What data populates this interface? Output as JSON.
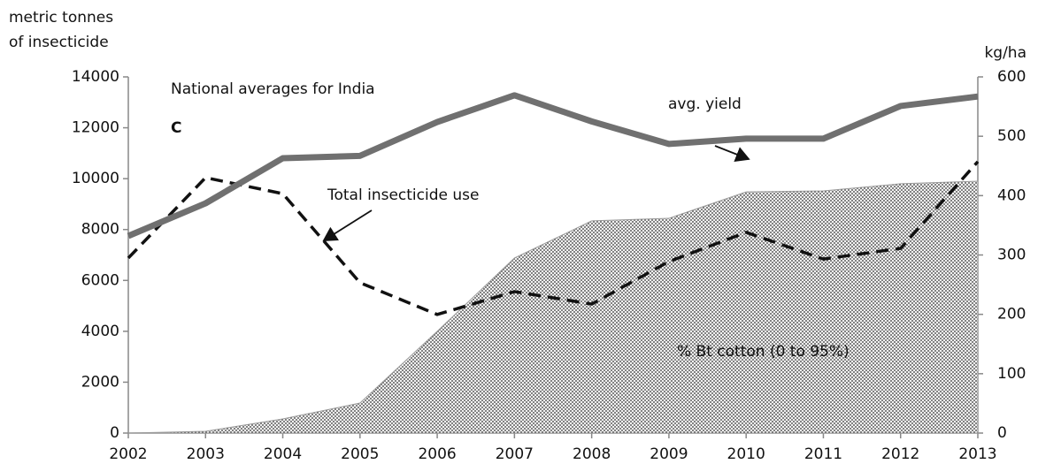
{
  "chart_data": {
    "type": "line",
    "title": "National averages for India",
    "panel_label": "C",
    "ylabel": [
      "metric tonnes",
      "of insecticide"
    ],
    "y2label": "kg/ha",
    "categories": [
      "2002",
      "2003",
      "2004",
      "2005",
      "2006",
      "2007",
      "2008",
      "2009",
      "2010",
      "2011",
      "2012",
      "2013"
    ],
    "series": [
      {
        "name": "% Bt cotton (0 to 95%)",
        "type": "area",
        "color": "#9a9a9a",
        "values": [
          0,
          70,
          555,
          1180,
          4000,
          6880,
          8340,
          8440,
          9480,
          9520,
          9800,
          9900
        ]
      },
      {
        "name": "Total insecticide use",
        "type": "line",
        "dash": true,
        "color": "#111111",
        "values": [
          6880,
          10040,
          9410,
          5910,
          4660,
          5560,
          5070,
          6740,
          7890,
          6840,
          7260,
          10670
        ]
      },
      {
        "name": "avg. yield",
        "type": "line",
        "axis": "y2",
        "color": "#707070",
        "values": [
          332,
          387,
          463,
          467,
          524,
          569,
          525,
          487,
          496,
          496,
          551,
          567
        ]
      }
    ],
    "ylim": [
      0,
      14000
    ],
    "yticks": [
      0,
      2000,
      4000,
      6000,
      8000,
      10000,
      12000,
      14000
    ],
    "y2lim": [
      0,
      600
    ],
    "y2ticks": [
      0,
      100,
      200,
      300,
      400,
      500,
      600
    ]
  }
}
